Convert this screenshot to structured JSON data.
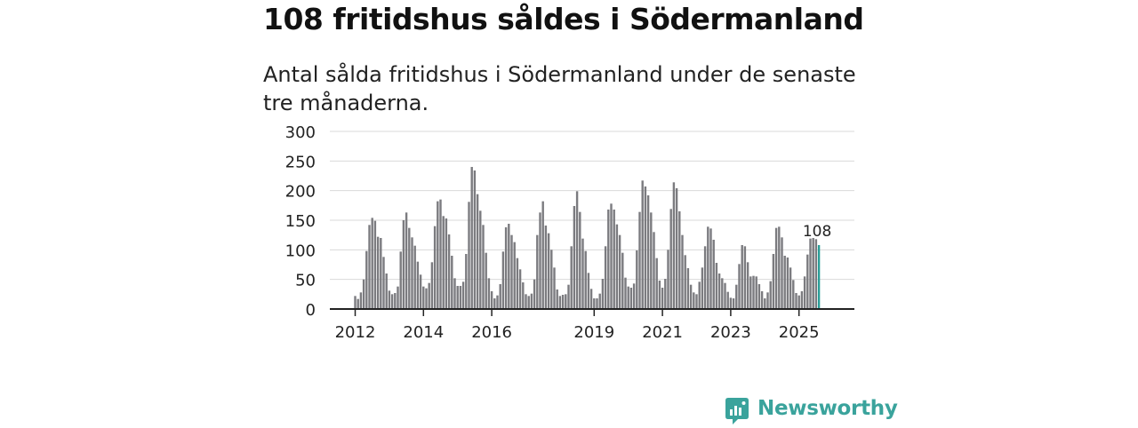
{
  "title": "108 fritidshus såldes i Södermanland",
  "subtitle": "Antal sålda fritidshus i Södermanland under de senaste tre månaderna.",
  "brand": {
    "name": "Newsworthy",
    "icon": "newsworthy-logo-icon",
    "color": "#3aa39c"
  },
  "chart_data": {
    "type": "bar",
    "title": "",
    "xlabel": "",
    "ylabel": "",
    "ylim": [
      0,
      300
    ],
    "yticks": [
      0,
      50,
      100,
      150,
      200,
      250,
      300
    ],
    "xtick_labels": [
      "2012",
      "2014",
      "2016",
      "2019",
      "2021",
      "2023",
      "2025"
    ],
    "grid": true,
    "bar_color": "#7b7b7f",
    "highlight_color": "#2a9d97",
    "annotation": {
      "label": "108",
      "value": 108,
      "month": "2025-10"
    },
    "series": [
      {
        "start_month": "2012-01",
        "values": [
          22,
          17,
          28,
          50,
          98,
          142,
          154,
          149,
          122,
          120,
          88,
          60,
          31,
          25,
          27,
          38,
          97,
          150,
          163,
          137,
          121,
          107,
          80,
          58,
          38,
          35,
          44,
          79,
          140,
          182,
          185,
          157,
          153,
          126,
          90,
          52,
          39,
          39,
          46,
          93,
          181,
          240,
          234,
          194,
          166,
          142,
          95,
          52,
          30,
          18,
          23,
          42,
          97,
          138,
          144,
          125,
          113,
          86,
          67,
          45,
          25,
          22,
          26,
          50,
          125,
          163,
          182,
          141,
          128,
          100,
          70,
          33,
          22,
          24,
          25,
          41,
          106,
          174,
          199,
          164,
          119,
          98,
          61,
          34,
          18,
          18,
          26,
          51,
          106,
          168,
          178,
          168,
          143,
          125,
          95,
          53,
          38,
          36,
          43,
          99,
          164,
          217,
          207,
          192,
          163,
          130,
          86,
          48,
          36,
          51,
          100,
          169,
          214,
          204,
          165,
          125,
          91,
          69,
          41,
          28,
          25,
          46,
          70,
          106,
          139,
          136,
          117,
          78,
          60,
          52,
          44,
          29,
          19,
          18,
          41,
          76,
          108,
          106,
          79,
          55,
          56,
          55,
          42,
          30,
          18,
          28,
          47,
          93,
          137,
          139,
          121,
          90,
          87,
          70,
          49,
          27,
          23,
          30,
          55,
          92,
          119,
          120,
          118,
          108
        ]
      }
    ]
  }
}
